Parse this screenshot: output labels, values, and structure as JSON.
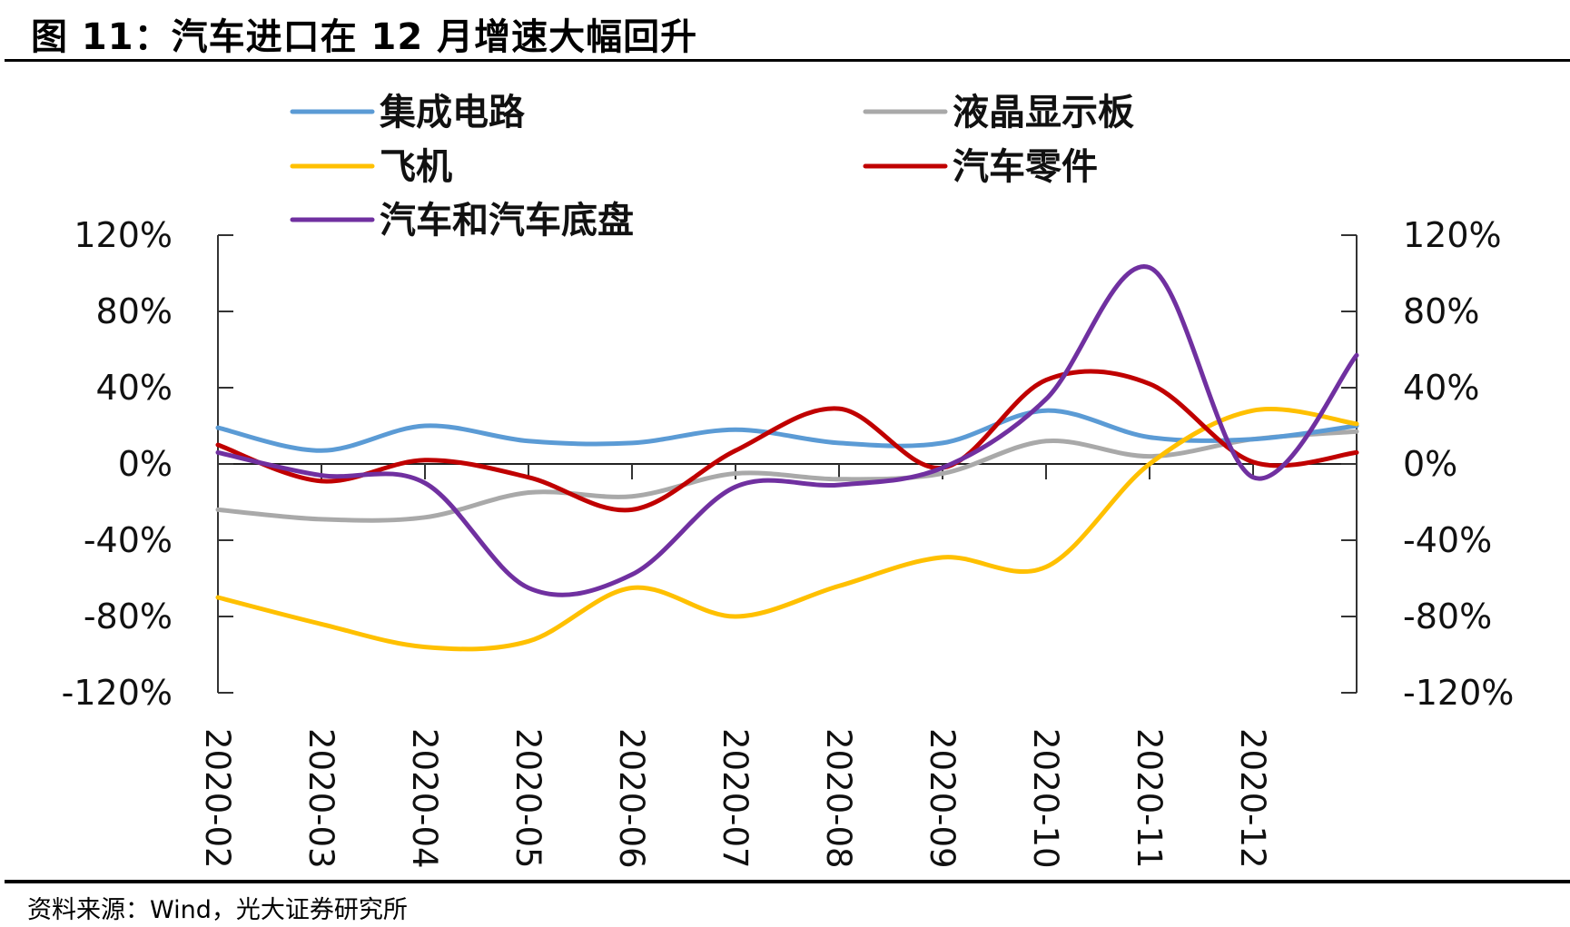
{
  "title": "图 11：汽车进口在 12 月增速大幅回升",
  "source": "资料来源：Wind，光大证券研究所",
  "chart_data": {
    "type": "line",
    "title": "图 11：汽车进口在 12 月增速大幅回升",
    "xlabel": "",
    "ylabel": "",
    "categories": [
      "2020-02",
      "2020-03",
      "2020-04",
      "2020-05",
      "2020-06",
      "2020-07",
      "2020-08",
      "2020-09",
      "2020-10",
      "2020-11",
      "2020-12",
      ""
    ],
    "ylim": [
      -120,
      120
    ],
    "y_ticks": [
      120,
      80,
      40,
      0,
      -40,
      -80,
      -120
    ],
    "y_tick_labels": [
      "120%",
      "80%",
      "40%",
      "0%",
      "-40%",
      "-80%",
      "-120%"
    ],
    "y_right_tick_labels": [
      "120%",
      "80%",
      "40%",
      "0%",
      "-40%",
      "-80%",
      "-120%"
    ],
    "grid": false,
    "legend_position": "top",
    "smooth": true,
    "series": [
      {
        "name": "集成电路",
        "color": "#5B9BD5",
        "values": [
          19,
          7,
          20,
          12,
          11,
          18,
          11,
          11,
          28,
          14,
          13,
          20
        ]
      },
      {
        "name": "液晶显示板",
        "color": "#A9A9A9",
        "values": [
          -24,
          -29,
          -28,
          -15,
          -17,
          -5,
          -8,
          -5,
          12,
          4,
          13,
          17
        ]
      },
      {
        "name": "飞机",
        "color": "#FFC000",
        "values": [
          -70,
          -84,
          -96,
          -93,
          -65,
          -80,
          -64,
          -49,
          -54,
          0,
          28,
          21
        ]
      },
      {
        "name": "汽车零件",
        "color": "#C00000",
        "values": [
          10,
          -9,
          2,
          -7,
          -24,
          7,
          29,
          -2,
          44,
          42,
          1,
          6
        ]
      },
      {
        "name": "汽车和汽车底盘",
        "color": "#7030A0",
        "values": [
          6,
          -6,
          -10,
          -65,
          -58,
          -12,
          -11,
          -2,
          34,
          103,
          -7,
          57
        ]
      }
    ]
  }
}
